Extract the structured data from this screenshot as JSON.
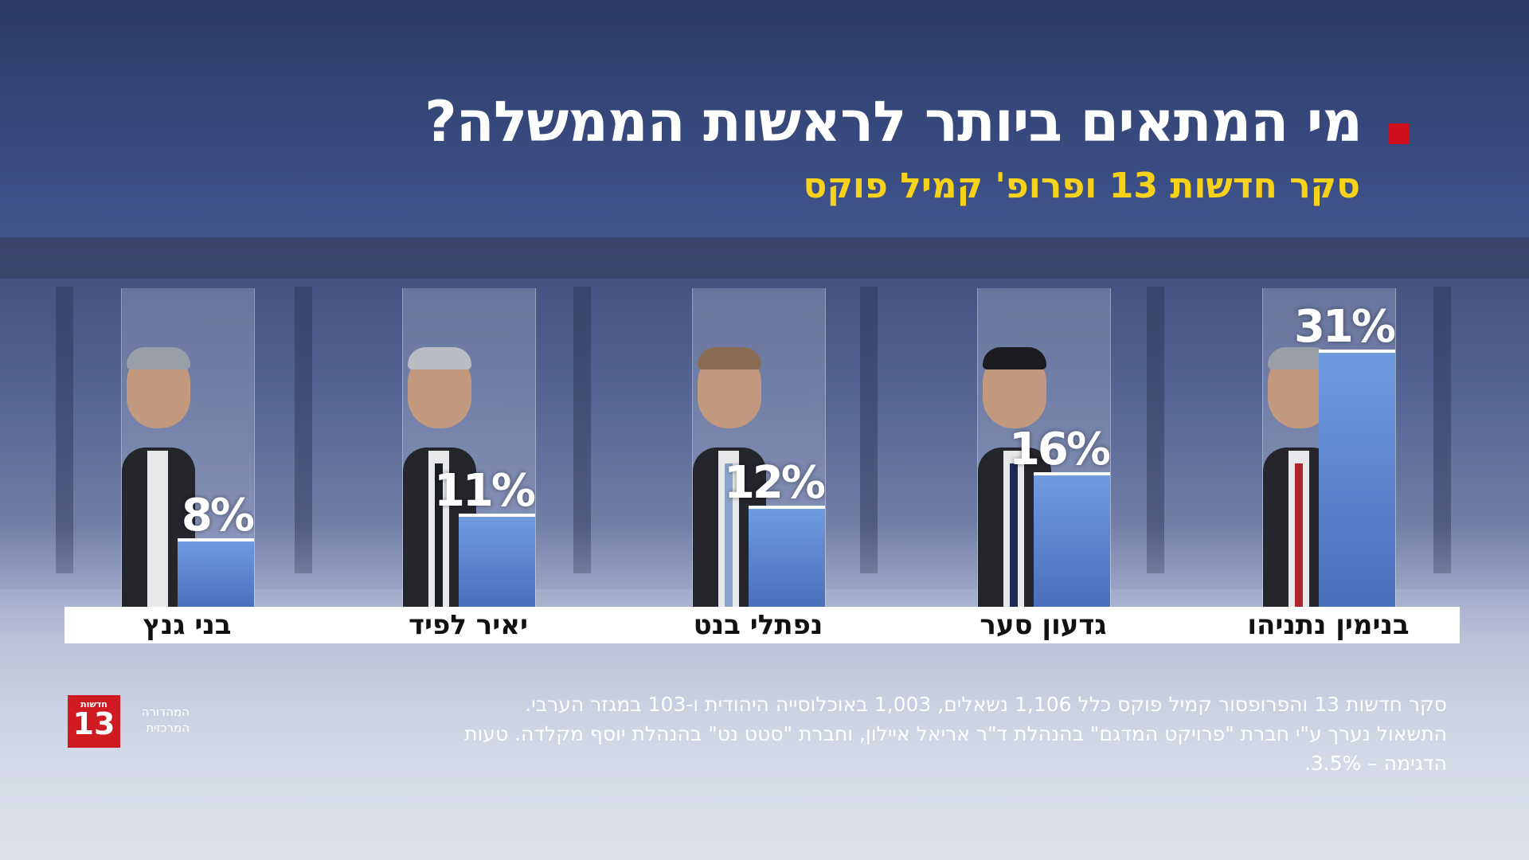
{
  "chart_data": {
    "type": "bar",
    "title": "מי המתאים ביותר לראשות הממשלה?",
    "subtitle": "סקר חדשות 13 ופרופ' קמיל פוקס",
    "categories": [
      "בנימין נתניהו",
      "גדעון סער",
      "נפתלי בנט",
      "יאיר לפיד",
      "בני גנץ"
    ],
    "values": [
      31,
      16,
      12,
      11,
      8
    ],
    "value_labels": [
      "31%",
      "16%",
      "12%",
      "11%",
      "8%"
    ],
    "unit": "%",
    "ylim": [
      0,
      35
    ],
    "grid": false,
    "direction": "rtl",
    "colors": {
      "bar": "#5a84d0",
      "bar_top_line": "#ffffff",
      "title": "#ffffff",
      "subtitle": "#f7d21a",
      "title_marker": "#d0101c"
    }
  },
  "candidates": [
    {
      "name": "בנימין נתניהו",
      "pct_label": "31%",
      "value": 31,
      "portrait_icon": "person-portrait-icon",
      "tie": "#b0232e",
      "hair": "#9a9ea6"
    },
    {
      "name": "גדעון סער",
      "pct_label": "16%",
      "value": 16,
      "portrait_icon": "person-portrait-icon",
      "tie": "#1d2a52",
      "hair": "#1c1c20"
    },
    {
      "name": "נפתלי בנט",
      "pct_label": "12%",
      "value": 12,
      "portrait_icon": "person-portrait-icon",
      "tie": "#8aa4cc",
      "hair": "#8a6c55"
    },
    {
      "name": "יאיר לפיד",
      "pct_label": "11%",
      "value": 11,
      "portrait_icon": "person-portrait-icon",
      "tie": "#1a1d24",
      "hair": "#b9bcc2"
    },
    {
      "name": "בני גנץ",
      "pct_label": "8%",
      "value": 8,
      "portrait_icon": "person-portrait-icon",
      "tie": "#e8e8ea",
      "hair": "#9a9ea6"
    }
  ],
  "logo": {
    "top_text": "חדשות",
    "number": "13",
    "side_line1": "המהדורה",
    "side_line2": "המרכזית",
    "color": "#d01a22"
  },
  "footnote": {
    "line1": "סקר חדשות 13 והפרופסור קמיל פוקס כלל 1,106 נשאלים, 1,003 באוכלוסייה היהודית ו-103 במגזר הערבי.",
    "line2": "התשאול נערך ע\"י חברת \"פרויקט המדגם\" בהנהלת ד\"ר אריאל איילון, וחברת \"סטט נט\" בהנהלת יוסף מקלדה. טעות",
    "line3": "הדגימה – 3.5%."
  }
}
